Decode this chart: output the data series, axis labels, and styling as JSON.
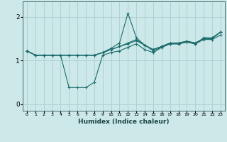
{
  "xlabel": "Humidex (Indice chaleur)",
  "xlim": [
    -0.5,
    23.5
  ],
  "ylim": [
    -0.15,
    2.35
  ],
  "yticks": [
    0,
    1,
    2
  ],
  "xticks": [
    0,
    1,
    2,
    3,
    4,
    5,
    6,
    7,
    8,
    9,
    10,
    11,
    12,
    13,
    14,
    15,
    16,
    17,
    18,
    19,
    20,
    21,
    22,
    23
  ],
  "bg_color": "#cce8e8",
  "grid_color": "#aacece",
  "line_color": "#1a6b6b",
  "series": [
    [
      1.22,
      1.12,
      1.12,
      1.12,
      1.12,
      0.38,
      0.38,
      0.38,
      0.5,
      1.12,
      1.18,
      1.22,
      1.3,
      1.38,
      1.25,
      1.18,
      1.3,
      1.38,
      1.38,
      1.42,
      1.38,
      1.52,
      1.52,
      1.65
    ],
    [
      1.22,
      1.12,
      1.12,
      1.12,
      1.12,
      1.12,
      1.12,
      1.12,
      1.12,
      1.18,
      1.25,
      1.32,
      1.4,
      1.48,
      1.35,
      1.25,
      1.32,
      1.4,
      1.4,
      1.44,
      1.4,
      1.5,
      1.5,
      1.65
    ],
    [
      1.22,
      1.12,
      1.12,
      1.12,
      1.12,
      1.12,
      1.12,
      1.12,
      1.12,
      1.18,
      1.28,
      1.4,
      2.08,
      1.52,
      1.35,
      1.22,
      1.3,
      1.38,
      1.38,
      1.42,
      1.38,
      1.48,
      1.48,
      1.58
    ],
    [
      1.22,
      1.12,
      1.12,
      1.12,
      1.12,
      1.12,
      1.12,
      1.12,
      1.12,
      1.18,
      1.25,
      1.32,
      1.38,
      1.45,
      1.35,
      1.25,
      1.32,
      1.4,
      1.4,
      1.44,
      1.4,
      1.5,
      1.5,
      1.65
    ]
  ]
}
